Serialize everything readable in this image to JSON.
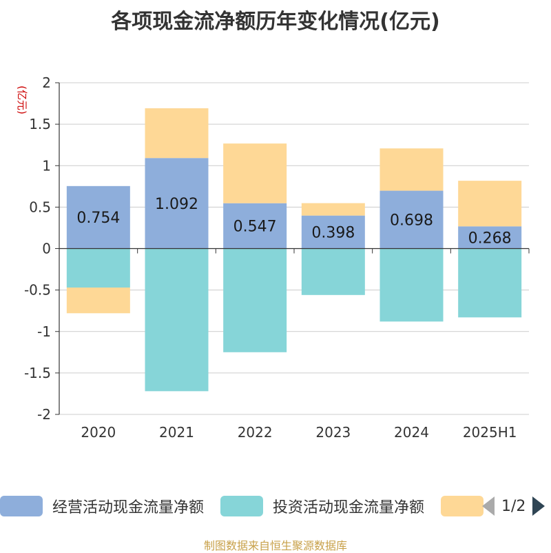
{
  "title": "各项现金流净额历年变化情况(亿元)",
  "unit_label": "(亿元)",
  "source": "制图数据来自恒生聚源数据库",
  "pager": {
    "text": "1/2"
  },
  "colors": {
    "operating": "#8eaedb",
    "investing": "#86d5d8",
    "financing": "#fed896"
  },
  "legend": [
    {
      "name": "经营活动现金流量净额",
      "color": "#8eaedb"
    },
    {
      "name": "投资活动现金流量净额",
      "color": "#86d5d8"
    },
    {
      "name": "",
      "color": "#fed896"
    }
  ],
  "chart_data": {
    "type": "bar",
    "stacked": true,
    "categories": [
      "2020",
      "2021",
      "2022",
      "2023",
      "2024",
      "2025H1"
    ],
    "series": [
      {
        "name": "经营活动现金流量净额",
        "values": [
          0.754,
          1.092,
          0.547,
          0.398,
          0.698,
          0.268
        ],
        "show_labels": true
      },
      {
        "name": "投资活动现金流量净额",
        "values": [
          -0.47,
          -1.72,
          -1.25,
          -0.56,
          -0.88,
          -0.83
        ],
        "show_labels": false
      },
      {
        "name": "",
        "values": [
          -0.31,
          0.6,
          0.72,
          0.15,
          0.51,
          0.55
        ],
        "show_labels": false
      }
    ],
    "ylim": [
      -2,
      2
    ],
    "yticks": [
      2,
      1.5,
      1,
      0.5,
      0,
      -0.5,
      -1,
      -1.5,
      -2
    ],
    "ytick_labels": [
      "2",
      "1.5",
      "1",
      "0.5",
      "0",
      "-0.5",
      "-1",
      "-1.5",
      "-2"
    ],
    "grid": true,
    "legend_position": "bottom"
  }
}
